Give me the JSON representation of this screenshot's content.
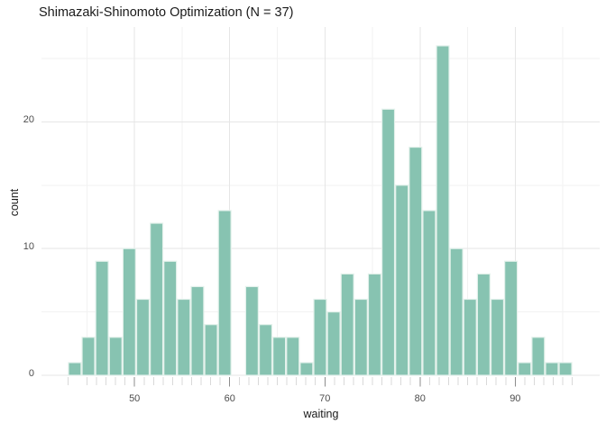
{
  "title": "Shimazaki-Shinomoto Optimization (N = 37)",
  "x_axis_title": "waiting",
  "y_axis_title": "count",
  "x_tick_labels": [
    "50",
    "60",
    "70",
    "80",
    "90"
  ],
  "y_tick_labels": [
    "0",
    "10",
    "20"
  ],
  "colors": {
    "background": "#ffffff",
    "bar_fill": "#87c3b1",
    "bar_border": "#e3f1eb",
    "grid_major": "#e6e6e6",
    "grid_minor": "#f2f2f2",
    "tick_minor": "#d9d9d9",
    "tick_major": "#8c8c8c",
    "axis_text": "#4d4d4d",
    "title_text": "#1a1a1a"
  },
  "chart_data": {
    "type": "bar",
    "subtype": "histogram",
    "title": "Shimazaki-Shinomoto Optimization (N = 37)",
    "xlabel": "waiting",
    "ylabel": "count",
    "n_bins": 37,
    "bin_start": 43,
    "bin_end": 96,
    "binwidth": 1.43243,
    "bin_counts": [
      1,
      3,
      9,
      3,
      10,
      6,
      12,
      9,
      6,
      7,
      4,
      13,
      0,
      7,
      4,
      3,
      3,
      1,
      6,
      5,
      8,
      6,
      8,
      21,
      15,
      18,
      13,
      26,
      10,
      6,
      8,
      6,
      9,
      1,
      3,
      1,
      1
    ],
    "total_count": 272,
    "x_major_breaks": [
      50,
      60,
      70,
      80,
      90
    ],
    "x_minor_breaks": [
      45,
      55,
      65,
      75,
      85,
      95
    ],
    "x_axis_ticks": [
      43,
      45,
      46,
      47,
      48,
      49,
      50,
      51,
      52,
      53,
      54,
      55,
      56,
      57,
      58,
      59,
      60,
      61,
      62,
      63,
      64,
      65,
      66,
      67,
      68,
      69,
      70,
      71,
      72,
      73,
      74,
      75,
      76,
      77,
      78,
      79,
      80,
      81,
      82,
      83,
      84,
      85,
      86,
      87,
      88,
      89,
      90,
      91,
      92,
      93,
      94,
      95,
      96
    ],
    "y_major_breaks": [
      0,
      10,
      20
    ],
    "y_minor_breaks": [
      5,
      15,
      25
    ],
    "xlim": [
      40.2,
      98.9
    ],
    "ylim": [
      0,
      27.5
    ],
    "grid": "major+minor",
    "legend": "none"
  }
}
